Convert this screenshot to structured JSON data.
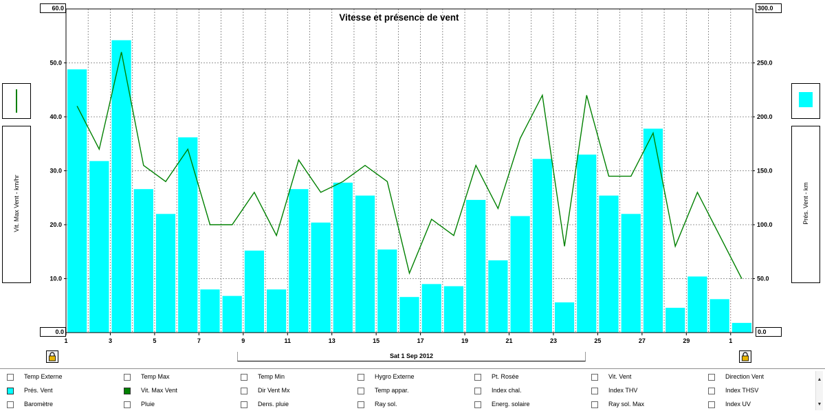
{
  "chart_data": {
    "type": "bar",
    "title": "Vitesse et présence de vent",
    "x_ticks": [
      "1",
      "3",
      "5",
      "7",
      "9",
      "11",
      "13",
      "15",
      "17",
      "19",
      "21",
      "23",
      "25",
      "27",
      "29",
      "1"
    ],
    "x_axis_label": "Sat 1 Sep 2012",
    "y_left": {
      "label": "Vit. Max Vent - km/hr",
      "min_label": "0.0",
      "max_label": "60.0",
      "ticks": [
        "50.0",
        "40.0",
        "30.0",
        "20.0",
        "10.0"
      ]
    },
    "y_right": {
      "label": "Prés. Vent - km",
      "min_label": "0.0",
      "max_label": "300.0",
      "ticks": [
        "250.0",
        "200.0",
        "150.0",
        "100.0",
        "50.0"
      ]
    },
    "ylim_left": [
      0,
      60
    ],
    "ylim_right": [
      0,
      300
    ],
    "grid": true,
    "series": [
      {
        "name": "Prés. Vent",
        "type": "bar",
        "axis": "right",
        "color": "#00ffff",
        "values": [
          244,
          159,
          271,
          133,
          110,
          181,
          40,
          34,
          76,
          40,
          133,
          102,
          139,
          127,
          77,
          33,
          45,
          43,
          123,
          67,
          108,
          161,
          28,
          165,
          127,
          110,
          189,
          23,
          52,
          31,
          9
        ]
      },
      {
        "name": "Vit. Max Vent",
        "type": "line",
        "axis": "left",
        "color": "#008000",
        "values": [
          42,
          34,
          52,
          31,
          28,
          34,
          20,
          20,
          26,
          18,
          32,
          26,
          28,
          31,
          28,
          11,
          21,
          18,
          31,
          23,
          36,
          44,
          16,
          44,
          29,
          29,
          37,
          16,
          26,
          18,
          10
        ]
      }
    ]
  },
  "legend": {
    "items": [
      {
        "label": "Temp Externe",
        "checked": false
      },
      {
        "label": "Temp Max",
        "checked": false
      },
      {
        "label": "Temp Min",
        "checked": false
      },
      {
        "label": "Hygro Externe",
        "checked": false
      },
      {
        "label": "Pt. Rosée",
        "checked": false
      },
      {
        "label": "Vit. Vent",
        "checked": false
      },
      {
        "label": "Direction Vent",
        "checked": false
      },
      {
        "label": "Prés. Vent",
        "checked": true,
        "color": "#00ffff"
      },
      {
        "label": "Vit. Max Vent",
        "checked": true,
        "color": "#008000"
      },
      {
        "label": "Dir Vent Mx",
        "checked": false
      },
      {
        "label": "Temp appar.",
        "checked": false
      },
      {
        "label": "Index chal.",
        "checked": false
      },
      {
        "label": "Index THV",
        "checked": false
      },
      {
        "label": "Index THSV",
        "checked": false
      },
      {
        "label": "Baromètre",
        "checked": false
      },
      {
        "label": "Pluie",
        "checked": false
      },
      {
        "label": "Dens. pluie",
        "checked": false
      },
      {
        "label": "Ray sol.",
        "checked": false
      },
      {
        "label": "Energ. solaire",
        "checked": false
      },
      {
        "label": "Ray sol. Max",
        "checked": false
      },
      {
        "label": "Index UV",
        "checked": false
      }
    ]
  },
  "icons": {
    "left_series_swatch": "line-swatch-icon",
    "right_series_swatch": "bar-swatch-icon",
    "lock": "padlock-icon"
  }
}
